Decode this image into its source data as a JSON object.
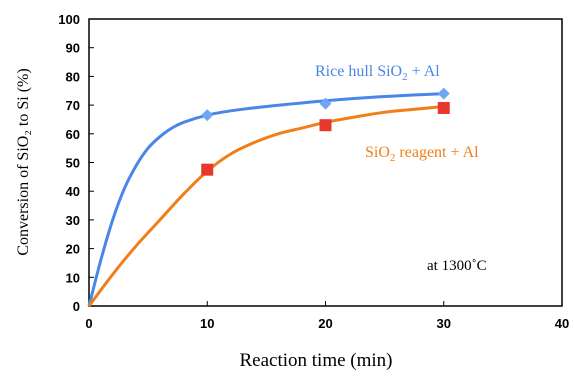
{
  "chart_data": {
    "type": "scatter",
    "xlabel": "Reaction time (min)",
    "ylabel": "Conversion of SiO₂ to Si (%)",
    "xlim": [
      0,
      40
    ],
    "ylim": [
      0,
      100
    ],
    "x_ticks": [
      "0",
      "10",
      "20",
      "30",
      "40"
    ],
    "y_ticks": [
      "0",
      "10",
      "20",
      "30",
      "40",
      "50",
      "60",
      "70",
      "80",
      "90",
      "100"
    ],
    "grid": false,
    "series": [
      {
        "name": "Rice hull SiO₂ + Al",
        "label_main": "Rice hull SiO",
        "label_sub": "2",
        "label_tail": " + Al",
        "color": "#4a86e8",
        "marker": "diamond",
        "x": [
          0,
          10,
          20,
          30
        ],
        "y": [
          0,
          66.5,
          70.5,
          74
        ],
        "fit": [
          [
            0,
            0
          ],
          [
            1,
            16
          ],
          [
            2,
            30
          ],
          [
            3,
            41
          ],
          [
            4,
            49
          ],
          [
            5,
            55
          ],
          [
            6,
            59
          ],
          [
            7,
            62
          ],
          [
            8,
            64
          ],
          [
            10,
            66.5
          ],
          [
            12,
            68
          ],
          [
            15,
            69.5
          ],
          [
            20,
            71.5
          ],
          [
            25,
            73
          ],
          [
            30,
            74
          ]
        ]
      },
      {
        "name": "SiO₂ reagent + Al",
        "label_main": "SiO",
        "label_sub": "2",
        "label_tail": " reagent + Al",
        "color": "#f07f1a",
        "marker": "square",
        "marker_color": "#e8382e",
        "x": [
          0,
          10,
          20,
          30
        ],
        "y": [
          0,
          47.5,
          63,
          69
        ],
        "fit": [
          [
            0,
            0
          ],
          [
            2,
            11
          ],
          [
            4,
            21
          ],
          [
            6,
            30
          ],
          [
            8,
            39
          ],
          [
            10,
            47
          ],
          [
            12,
            53
          ],
          [
            14,
            57
          ],
          [
            16,
            60
          ],
          [
            18,
            62
          ],
          [
            20,
            64
          ],
          [
            22,
            65.5
          ],
          [
            25,
            67.5
          ],
          [
            28,
            68.7
          ],
          [
            30,
            69.5
          ]
        ]
      }
    ],
    "annotation": "at 1300˚C"
  }
}
